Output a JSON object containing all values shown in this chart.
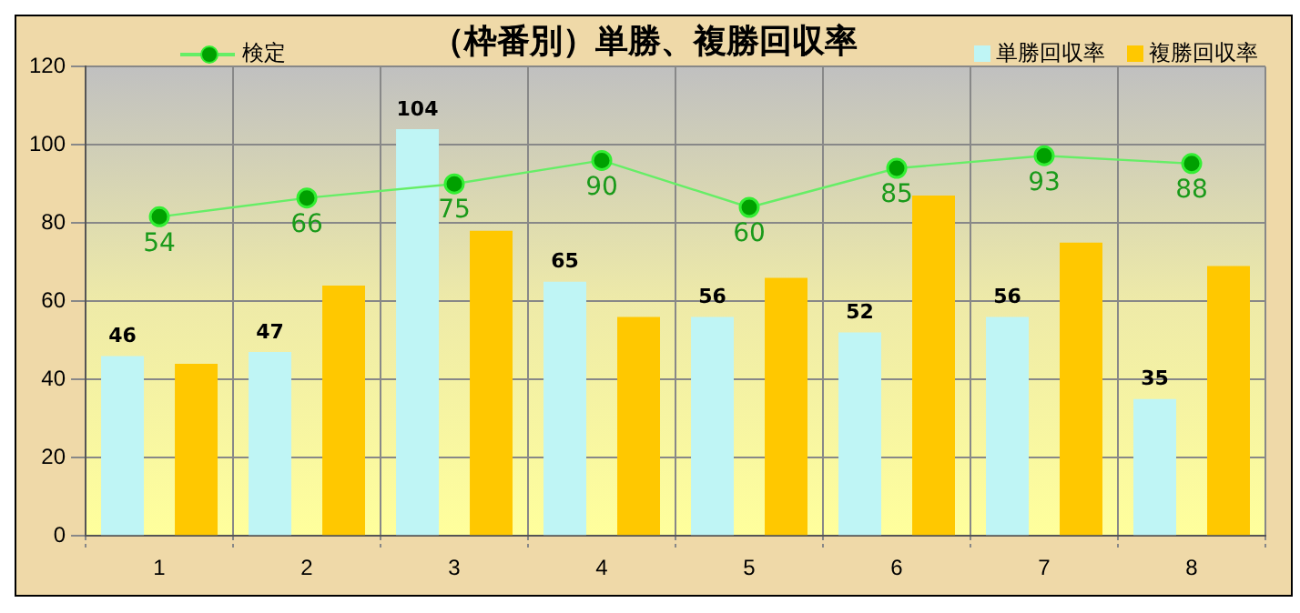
{
  "chart_data": {
    "type": "bar",
    "title": "（枠番別）単勝、複勝回収率",
    "categories": [
      "1",
      "2",
      "3",
      "4",
      "5",
      "6",
      "7",
      "8"
    ],
    "series": [
      {
        "name": "検定",
        "type": "line",
        "axis": "y2",
        "color": "#00a000",
        "marker": "circle",
        "line_style": "solid",
        "values": [
          54,
          66,
          75,
          90,
          60,
          85,
          93,
          88
        ],
        "value_labels": [
          "54",
          "66",
          "75",
          "90",
          "60",
          "85",
          "93",
          "88"
        ]
      },
      {
        "name": "単勝回収率",
        "color": "#bff5f5",
        "values": [
          46,
          47,
          104,
          65,
          56,
          52,
          56,
          35
        ],
        "value_labels": [
          "46",
          "47",
          "104",
          "65",
          "56",
          "52",
          "56",
          "35"
        ]
      },
      {
        "name": "複勝回収率",
        "color": "#ffc800",
        "values": [
          44,
          64,
          78,
          56,
          66,
          87,
          75,
          69
        ]
      }
    ],
    "ylim": [
      0,
      120
    ],
    "yticks": [
      0,
      20,
      40,
      60,
      80,
      100,
      120
    ],
    "grid": true,
    "legend": "top",
    "tick_labels": "xy"
  }
}
